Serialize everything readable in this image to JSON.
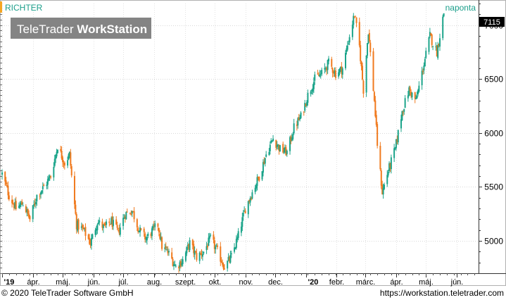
{
  "header": {
    "symbol": "RICHTER",
    "interval": "naponta",
    "watermark_light": "TeleTrader ",
    "watermark_bold": "WorkStation"
  },
  "footer": {
    "copyright": "© 2020 TeleTrader Software GmbH",
    "url": "https://workstation.teletrader.com"
  },
  "colors": {
    "up": "#1ba48a",
    "down": "#f07a1e",
    "accent": "#f5a623",
    "text_accent": "#1a9e8a"
  },
  "chart_data": {
    "type": "candlestick",
    "title": "RICHTER",
    "interval": "naponta",
    "last_value": 7115,
    "last_value_label": "7115",
    "ylim": [
      4700,
      7200
    ],
    "y_ticks": [
      5000,
      5500,
      6000,
      6500,
      7000
    ],
    "y_tick_labels": [
      "5000",
      "5500",
      "6000",
      "6500",
      "7000"
    ],
    "x_ticks": [
      {
        "label": "'19",
        "date": "2019-03-01",
        "bold": true
      },
      {
        "label": "ápr.",
        "date": "2019-04-01"
      },
      {
        "label": "máj.",
        "date": "2019-05-01"
      },
      {
        "label": "jún.",
        "date": "2019-06-01"
      },
      {
        "label": "júl.",
        "date": "2019-07-01"
      },
      {
        "label": "aug.",
        "date": "2019-08-01"
      },
      {
        "label": "szept.",
        "date": "2019-09-01"
      },
      {
        "label": "okt.",
        "date": "2019-10-01"
      },
      {
        "label": "nov.",
        "date": "2019-11-01"
      },
      {
        "label": "dec.",
        "date": "2019-12-01"
      },
      {
        "label": "'20",
        "date": "2020-01-01",
        "bold": true
      },
      {
        "label": "febr.",
        "date": "2020-02-01"
      },
      {
        "label": "márc.",
        "date": "2020-03-01"
      },
      {
        "label": "ápr.",
        "date": "2020-04-01"
      },
      {
        "label": "máj.",
        "date": "2020-05-01"
      },
      {
        "label": "jún.",
        "date": "2020-06-01"
      }
    ],
    "x_range": [
      "2019-03-01",
      "2020-06-23"
    ],
    "grid": true,
    "close_path": [
      [
        "2019-03-01",
        5620
      ],
      [
        "2019-03-08",
        5420
      ],
      [
        "2019-03-15",
        5300
      ],
      [
        "2019-03-22",
        5350
      ],
      [
        "2019-03-29",
        5200
      ],
      [
        "2019-04-05",
        5420
      ],
      [
        "2019-04-12",
        5500
      ],
      [
        "2019-04-19",
        5600
      ],
      [
        "2019-04-26",
        5880
      ],
      [
        "2019-05-03",
        5720
      ],
      [
        "2019-05-08",
        5800
      ],
      [
        "2019-05-10",
        5600
      ],
      [
        "2019-05-15",
        5150
      ],
      [
        "2019-05-22",
        5100
      ],
      [
        "2019-05-29",
        4980
      ],
      [
        "2019-06-05",
        5180
      ],
      [
        "2019-06-12",
        5120
      ],
      [
        "2019-06-19",
        5180
      ],
      [
        "2019-06-26",
        5080
      ],
      [
        "2019-07-03",
        5250
      ],
      [
        "2019-07-10",
        5280
      ],
      [
        "2019-07-17",
        5100
      ],
      [
        "2019-07-24",
        5020
      ],
      [
        "2019-07-31",
        5100
      ],
      [
        "2019-08-05",
        5150
      ],
      [
        "2019-08-09",
        4950
      ],
      [
        "2019-08-16",
        4880
      ],
      [
        "2019-08-23",
        4760
      ],
      [
        "2019-08-30",
        4820
      ],
      [
        "2019-09-06",
        4980
      ],
      [
        "2019-09-13",
        4850
      ],
      [
        "2019-09-20",
        4900
      ],
      [
        "2019-09-27",
        5020
      ],
      [
        "2019-10-04",
        4900
      ],
      [
        "2019-10-11",
        4760
      ],
      [
        "2019-10-18",
        4850
      ],
      [
        "2019-10-25",
        5050
      ],
      [
        "2019-11-01",
        5300
      ],
      [
        "2019-11-08",
        5450
      ],
      [
        "2019-11-15",
        5600
      ],
      [
        "2019-11-22",
        5800
      ],
      [
        "2019-11-29",
        5950
      ],
      [
        "2019-12-06",
        5850
      ],
      [
        "2019-12-13",
        5820
      ],
      [
        "2019-12-20",
        6050
      ],
      [
        "2019-12-27",
        6150
      ],
      [
        "2020-01-03",
        6350
      ],
      [
        "2020-01-10",
        6500
      ],
      [
        "2020-01-17",
        6550
      ],
      [
        "2020-01-24",
        6650
      ],
      [
        "2020-01-31",
        6550
      ],
      [
        "2020-02-07",
        6600
      ],
      [
        "2020-02-14",
        6900
      ],
      [
        "2020-02-19",
        7100
      ],
      [
        "2020-02-24",
        6800
      ],
      [
        "2020-02-28",
        6400
      ],
      [
        "2020-03-04",
        6950
      ],
      [
        "2020-03-10",
        6300
      ],
      [
        "2020-03-13",
        5900
      ],
      [
        "2020-03-18",
        5450
      ],
      [
        "2020-03-24",
        5650
      ],
      [
        "2020-03-31",
        5850
      ],
      [
        "2020-04-07",
        6200
      ],
      [
        "2020-04-14",
        6400
      ],
      [
        "2020-04-21",
        6300
      ],
      [
        "2020-04-28",
        6600
      ],
      [
        "2020-05-05",
        6900
      ],
      [
        "2020-05-12",
        6750
      ],
      [
        "2020-05-19",
        7115
      ]
    ]
  }
}
